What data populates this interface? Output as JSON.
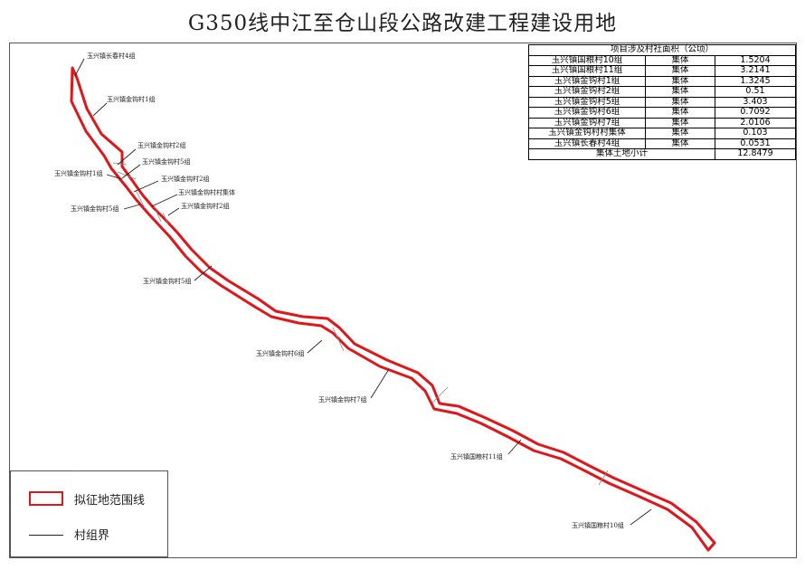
{
  "title": "G350线中江至仓山段公路改建工程建设用地",
  "table": {
    "header": "项目涉及村社面积（公顷）",
    "rows": [
      {
        "name": "玉兴镇国粮村10组",
        "type": "集体",
        "area": "1.5204"
      },
      {
        "name": "玉兴镇国粮村11组",
        "type": "集体",
        "area": "3.2141"
      },
      {
        "name": "玉兴镇金钩村1组",
        "type": "集体",
        "area": "1.3245"
      },
      {
        "name": "玉兴镇金钩村2组",
        "type": "集体",
        "area": "0.51"
      },
      {
        "name": "玉兴镇金钩村5组",
        "type": "集体",
        "area": "3.403"
      },
      {
        "name": "玉兴镇金钩村6组",
        "type": "集体",
        "area": "0.7092"
      },
      {
        "name": "玉兴镇金钩村7组",
        "type": "集体",
        "area": "2.0106"
      },
      {
        "name": "玉兴镇金钩村村集体",
        "type": "集体",
        "area": "0.103"
      },
      {
        "name": "玉兴镇长春村4组",
        "type": "集体",
        "area": "0.0531"
      }
    ],
    "total_label": "集体土地小计",
    "total_value": "12.8479"
  },
  "legend": {
    "boundary_label": "拟征地范围线",
    "village_label": "村组界"
  },
  "map_labels": {
    "changchun4": "玉兴镇长春村4组",
    "jingou1": "玉兴镇金钩村1组",
    "jingou2_a": "玉兴镇金钩村2组",
    "jingou5_a": "玉兴镇金钩村5组",
    "jingou1_b": "玉兴镇金钩村1组",
    "jingou2_b": "玉兴镇金钩村2组",
    "jingou_collective": "玉兴镇金钩村村集体",
    "jingou5_b": "玉兴镇金钩村5组",
    "jingou2_c": "玉兴镇金钩村2组",
    "jingou5_c": "玉兴镇金钩村5组",
    "jingou6": "玉兴镇金钩村6组",
    "jingou7": "玉兴镇金钩村7组",
    "guoliang11": "玉兴镇国粮村11组",
    "guoliang10": "玉兴镇国粮村10组"
  },
  "colors": {
    "boundary": "#e0161a",
    "village_line": "#222222"
  }
}
